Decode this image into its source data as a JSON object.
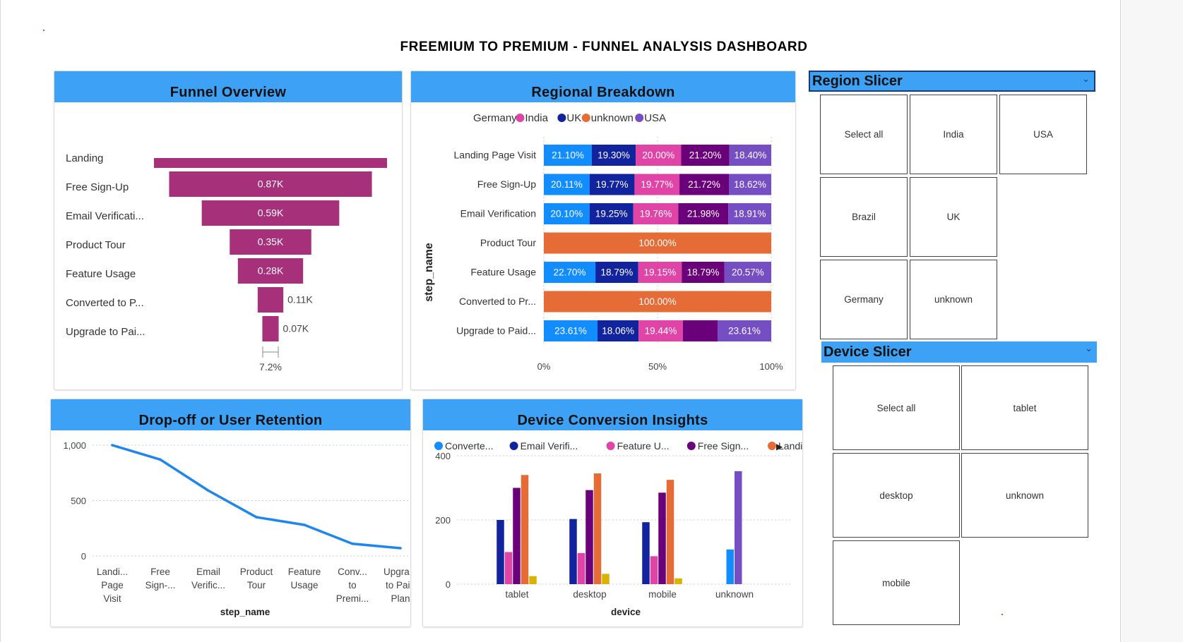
{
  "dashboard": {
    "title": "FREEMIUM TO PREMIUM - FUNNEL ANALYSIS DASHBOARD"
  },
  "colors": {
    "header": "#3da2f5",
    "funnel": "#a6307a",
    "line": "#1f86ee",
    "germany": "#118dff",
    "india": "#e044a7",
    "uk": "#12239e",
    "unknown": "#e66c37",
    "usa": "#744ec2",
    "purple_dark": "#6b007b"
  },
  "panels": {
    "funnel": {
      "title": "Funnel Overview"
    },
    "regional": {
      "title": "Regional Breakdown"
    },
    "dropoff": {
      "title": "Drop-off or User Retention"
    },
    "device": {
      "title": "Device Conversion Insights"
    }
  },
  "chart_data": [
    {
      "type": "bar",
      "name": "funnel",
      "title": "Funnel Overview",
      "categories": [
        "Landing",
        "Free Sign-Up",
        "Email Verificati...",
        "Product Tour",
        "Feature Usage",
        "Converted to P...",
        "Upgrade to Pai..."
      ],
      "values": [
        1000,
        870,
        590,
        350,
        280,
        110,
        70
      ],
      "value_labels": [
        "",
        "0.87K",
        "0.59K",
        "0.35K",
        "0.28K",
        "0.11K",
        "0.07K"
      ],
      "footer_label": "7.2%"
    },
    {
      "type": "bar",
      "name": "regional",
      "title": "Regional Breakdown",
      "ylabel": "step_name",
      "legend": [
        "Germany",
        "India",
        "UK",
        "unknown",
        "USA"
      ],
      "categories": [
        "Landing Page Visit",
        "Free Sign-Up",
        "Email Verification",
        "Product Tour",
        "Feature Usage",
        "Converted to Pr...",
        "Upgrade to Paid..."
      ],
      "xticks": [
        "0%",
        "50%",
        "100%"
      ],
      "xlim": [
        0,
        100
      ],
      "rows": [
        [
          {
            "v": 21.1,
            "c": "#118dff",
            "l": "21.10%"
          },
          {
            "v": 19.3,
            "c": "#12239e",
            "l": "19.30%"
          },
          {
            "v": 20.0,
            "c": "#e044a7",
            "l": "20.00%"
          },
          {
            "v": 21.2,
            "c": "#6b007b",
            "l": "21.20%"
          },
          {
            "v": 18.4,
            "c": "#744ec2",
            "l": "18.40%"
          }
        ],
        [
          {
            "v": 20.11,
            "c": "#118dff",
            "l": "20.11%"
          },
          {
            "v": 19.77,
            "c": "#12239e",
            "l": "19.77%"
          },
          {
            "v": 19.77,
            "c": "#e044a7",
            "l": "19.77%"
          },
          {
            "v": 21.72,
            "c": "#6b007b",
            "l": "21.72%"
          },
          {
            "v": 18.62,
            "c": "#744ec2",
            "l": "18.62%"
          }
        ],
        [
          {
            "v": 20.1,
            "c": "#118dff",
            "l": "20.10%"
          },
          {
            "v": 19.25,
            "c": "#12239e",
            "l": "19.25%"
          },
          {
            "v": 19.76,
            "c": "#e044a7",
            "l": "19.76%"
          },
          {
            "v": 21.98,
            "c": "#6b007b",
            "l": "21.98%"
          },
          {
            "v": 18.91,
            "c": "#744ec2",
            "l": "18.91%"
          }
        ],
        [
          {
            "v": 100,
            "c": "#e66c37",
            "l": "100.00%"
          }
        ],
        [
          {
            "v": 22.7,
            "c": "#118dff",
            "l": "22.70%"
          },
          {
            "v": 18.79,
            "c": "#12239e",
            "l": "18.79%"
          },
          {
            "v": 19.15,
            "c": "#e044a7",
            "l": "19.15%"
          },
          {
            "v": 18.79,
            "c": "#6b007b",
            "l": "18.79%"
          },
          {
            "v": 20.57,
            "c": "#744ec2",
            "l": "20.57%"
          }
        ],
        [
          {
            "v": 100,
            "c": "#e66c37",
            "l": "100.00%"
          }
        ],
        [
          {
            "v": 23.61,
            "c": "#118dff",
            "l": "23.61%"
          },
          {
            "v": 18.06,
            "c": "#12239e",
            "l": "18.06%"
          },
          {
            "v": 19.44,
            "c": "#e044a7",
            "l": "19.44%"
          },
          {
            "v": 15.28,
            "c": "#6b007b",
            "l": ""
          },
          {
            "v": 23.61,
            "c": "#744ec2",
            "l": "23.61%"
          }
        ]
      ]
    },
    {
      "type": "line",
      "name": "dropoff",
      "title": "Drop-off or User Retention",
      "xlabel": "step_name",
      "x": [
        [
          "Landi...",
          "Page",
          "Visit"
        ],
        [
          "Free",
          "Sign-..."
        ],
        [
          "Email",
          "Verific..."
        ],
        [
          "Product",
          "Tour"
        ],
        [
          "Feature",
          "Usage"
        ],
        [
          "Conv...",
          "to",
          "Premi..."
        ],
        [
          "Upgra...",
          "to Paid",
          "Plan"
        ]
      ],
      "values": [
        1000,
        870,
        590,
        350,
        280,
        110,
        70
      ],
      "yticks": [
        "1,000",
        "500",
        "0"
      ],
      "ylim": [
        0,
        1000
      ]
    },
    {
      "type": "bar",
      "name": "device",
      "title": "Device Conversion Insights",
      "xlabel": "device",
      "legend": [
        {
          "label": "Converte...",
          "color": "#118dff"
        },
        {
          "label": "Email Verifi...",
          "color": "#12239e"
        },
        {
          "label": "Feature U...",
          "color": "#e044a7"
        },
        {
          "label": "Free Sign...",
          "color": "#6b007b"
        },
        {
          "label": "Landing ...",
          "color": "#e66c37"
        }
      ],
      "categories": [
        "tablet",
        "desktop",
        "mobile",
        "unknown"
      ],
      "yticks": [
        "400",
        "200",
        "0"
      ],
      "ylim": [
        0,
        400
      ],
      "series_colors": [
        "#118dff",
        "#12239e",
        "#e044a7",
        "#6b007b",
        "#e66c37",
        "#744ec2",
        "#d9b300"
      ],
      "groups": [
        [
          0,
          200,
          100,
          300,
          340,
          0,
          25
        ],
        [
          0,
          203,
          97,
          293,
          345,
          0,
          32
        ],
        [
          0,
          193,
          87,
          285,
          325,
          0,
          18
        ],
        [
          108,
          0,
          0,
          0,
          0,
          352,
          0
        ]
      ]
    }
  ],
  "region_slicer": {
    "title": "Region Slicer",
    "items": [
      "Select all",
      "India",
      "USA",
      "Brazil",
      "UK",
      "Germany",
      "unknown"
    ]
  },
  "device_slicer": {
    "title": "Device Slicer",
    "items": [
      "Select all",
      "tablet",
      "desktop",
      "unknown",
      "mobile"
    ]
  }
}
